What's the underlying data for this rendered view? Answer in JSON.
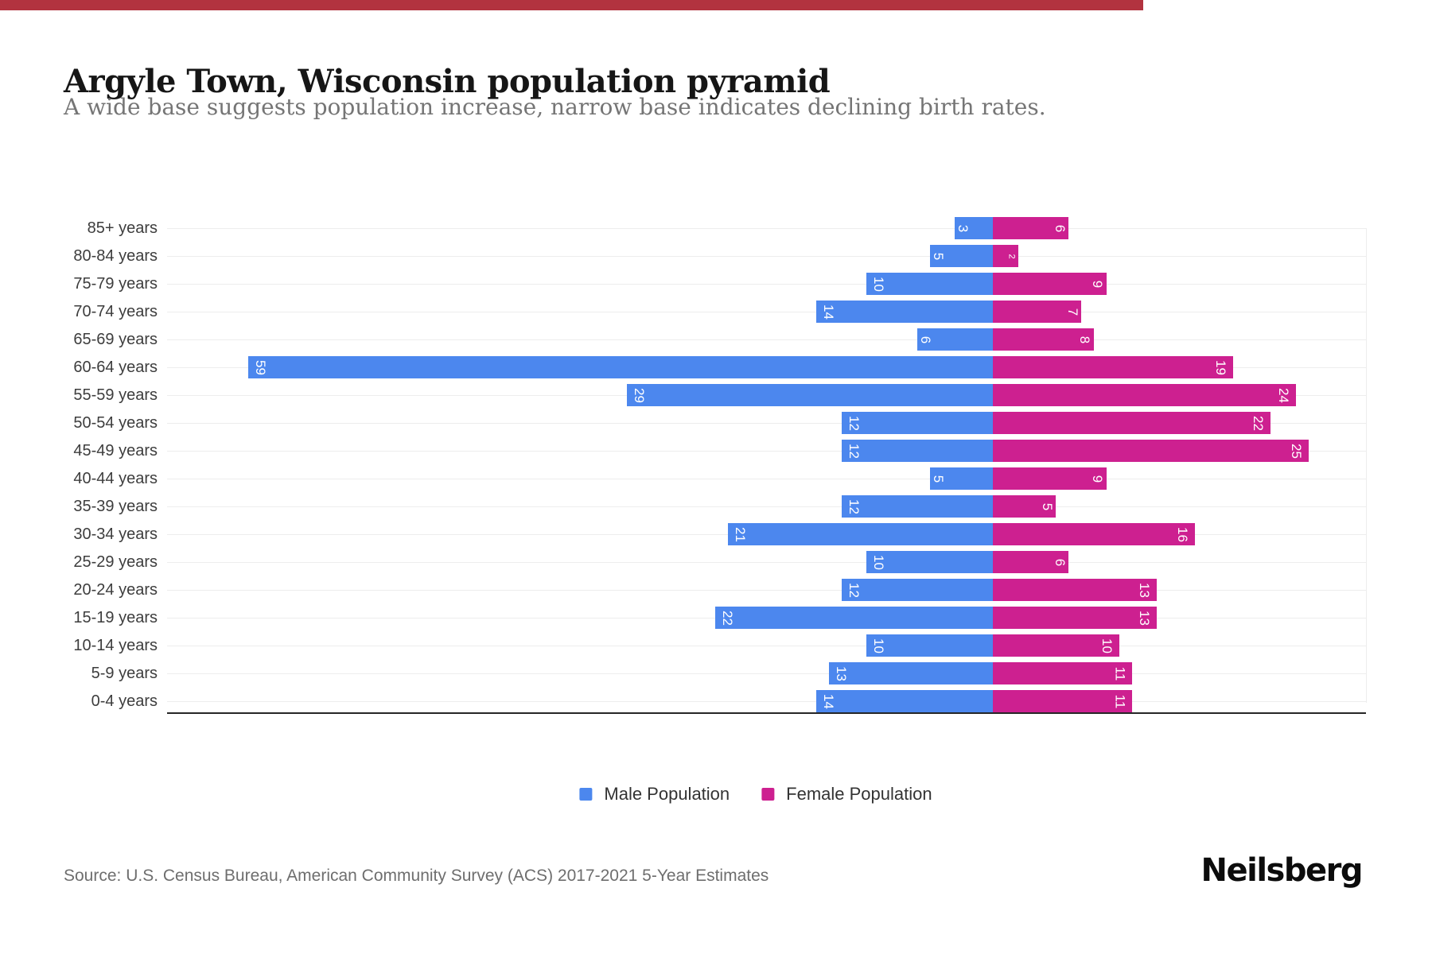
{
  "header": {
    "title": "Argyle Town, Wisconsin population pyramid",
    "subtitle": "A wide base suggests population increase, narrow base indicates declining birth rates."
  },
  "top_strip": {
    "color": "#b2333f"
  },
  "colors": {
    "male": "#4c87ee",
    "female": "#cd2090",
    "grid": "#ededed",
    "axis": "#262626"
  },
  "legend": [
    {
      "label": "Male Population",
      "color": "#4c87ee"
    },
    {
      "label": "Female Population",
      "color": "#cd2090"
    }
  ],
  "footer": {
    "source": "Source: U.S. Census Bureau, American Community Survey (ACS) 2017-2021 5-Year Estimates",
    "brand": "Neilsberg"
  },
  "chart_data": {
    "type": "bar",
    "variant": "population-pyramid",
    "title": "Argyle Town, Wisconsin population pyramid",
    "categories": [
      "85+ years",
      "80-84 years",
      "75-79 years",
      "70-74 years",
      "65-69 years",
      "60-64 years",
      "55-59 years",
      "50-54 years",
      "45-49 years",
      "40-44 years",
      "35-39 years",
      "30-34 years",
      "25-29 years",
      "20-24 years",
      "15-19 years",
      "10-14 years",
      "5-9 years",
      "0-4 years"
    ],
    "series": [
      {
        "name": "Male Population",
        "color": "#4c87ee",
        "direction": "left",
        "values": [
          3,
          5,
          10,
          14,
          6,
          59,
          29,
          12,
          12,
          5,
          12,
          21,
          10,
          12,
          22,
          10,
          13,
          14
        ]
      },
      {
        "name": "Female Population",
        "color": "#cd2090",
        "direction": "right",
        "values": [
          6,
          2,
          9,
          7,
          8,
          19,
          24,
          22,
          25,
          9,
          5,
          16,
          6,
          13,
          13,
          10,
          11,
          11
        ]
      }
    ],
    "value_labels": "inside-bar, rotated 90deg, white",
    "legend_position": "bottom-center",
    "grid": "light horizontal line per category row",
    "x_axis": "hidden (no numeric ticks); solid dark baseline under last row",
    "xlim_male": [
      0,
      64
    ],
    "xlim_female": [
      0,
      30
    ]
  }
}
